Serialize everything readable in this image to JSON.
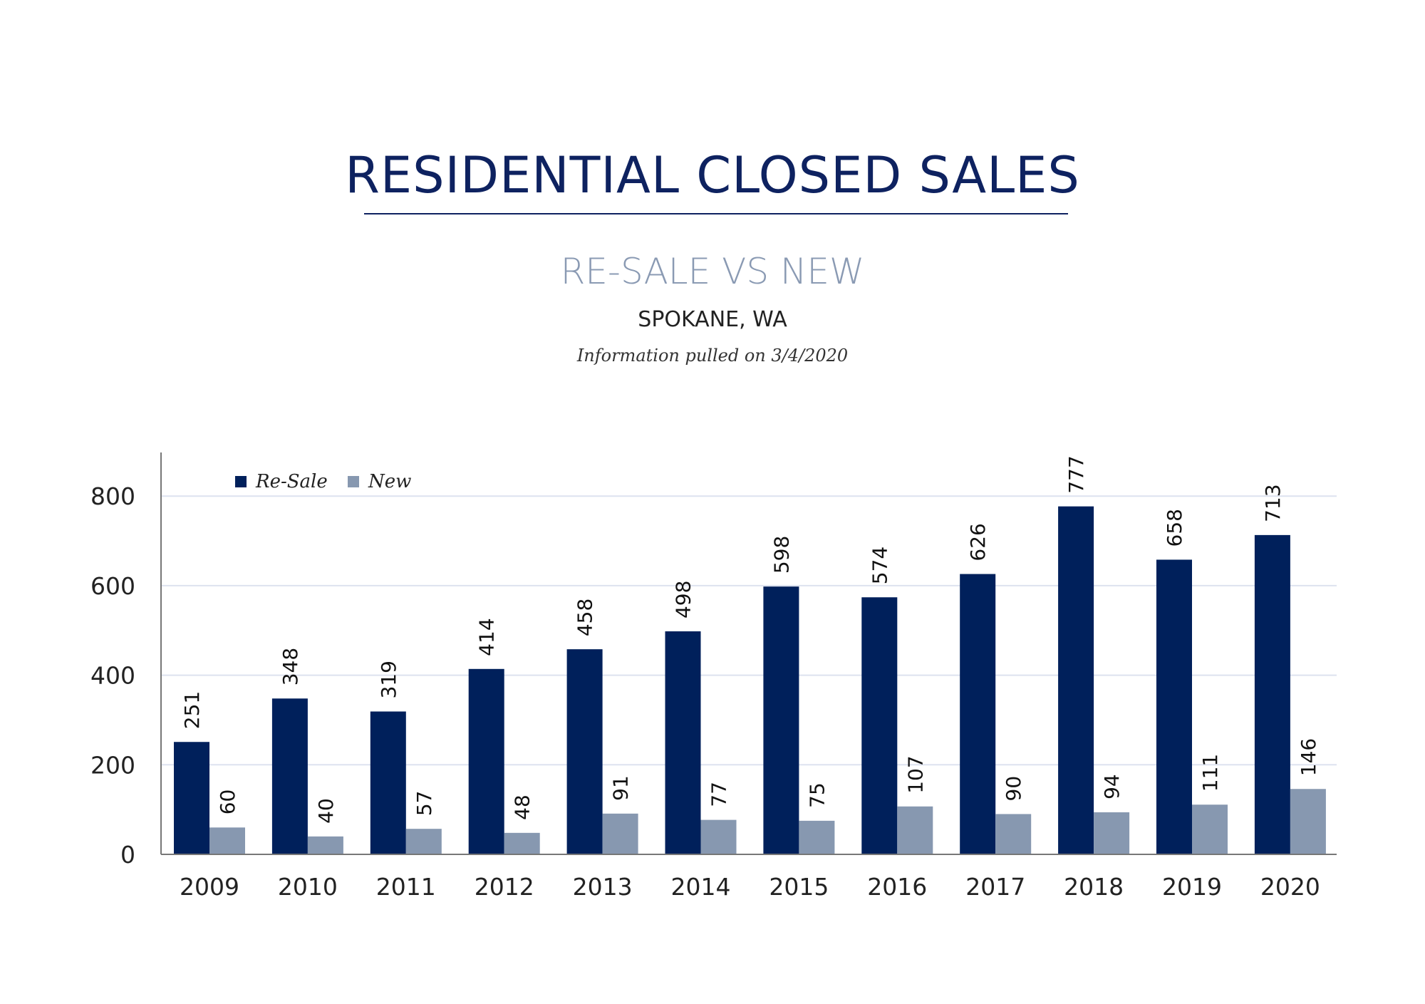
{
  "chart_data": {
    "type": "bar",
    "title": "RESIDENTIAL CLOSED SALES",
    "subtitle": "RE-SALE VS NEW",
    "location": "SPOKANE, WA",
    "note": "Information pulled on 3/4/2020",
    "categories": [
      "2009",
      "2010",
      "2011",
      "2012",
      "2013",
      "2014",
      "2015",
      "2016",
      "2017",
      "2018",
      "2019",
      "2020"
    ],
    "series": [
      {
        "name": "Re-Sale",
        "color": "#00205b",
        "values": [
          251,
          348,
          319,
          414,
          458,
          498,
          598,
          574,
          626,
          777,
          658,
          713
        ]
      },
      {
        "name": "New",
        "color": "#8798b0",
        "values": [
          60,
          40,
          57,
          48,
          91,
          77,
          75,
          107,
          90,
          94,
          111,
          146
        ]
      }
    ],
    "yticks": [
      0,
      200,
      400,
      600,
      800
    ],
    "ylim": [
      0,
      900
    ],
    "grid": true,
    "legend": "top-left",
    "data_labels": true
  }
}
